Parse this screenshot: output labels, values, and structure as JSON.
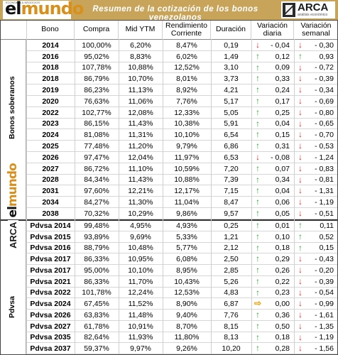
{
  "banner": {
    "title": "Resumen de la cotización de los bonos venezolanos",
    "logo_left": {
      "el": "el",
      "mundo": "mundo",
      "sub": "ECONOMÍA & NEGOCIOS"
    },
    "logo_right": {
      "word": "ARCA",
      "tag": "análisis económico"
    }
  },
  "headers": {
    "bono": "Bono",
    "compra": "Compra",
    "ytm": "Mid YTM",
    "rend": "Rendimiento Corriente",
    "dur": "Duración",
    "vd": "Variación diaria",
    "vs": "Variación semanal"
  },
  "groups": {
    "soberanos": "Bonos soberanos",
    "pdvsa": "Pdvsa"
  },
  "side_logo": {
    "arca": "ARCA",
    "el": "el",
    "mundo": "mundo"
  },
  "colors": {
    "up": "#2e9e3a",
    "down": "#d42a2a",
    "flat": "#f0a400",
    "banner": "#c8a45a"
  },
  "rows": [
    {
      "bono": "2014",
      "compra": "100,00%",
      "ytm": "6,20%",
      "rend": "8,47%",
      "dur": "0,19",
      "vd": "- 0,04",
      "vd_dir": "down",
      "vs": "- 0,30",
      "vs_dir": "down"
    },
    {
      "bono": "2016",
      "compra": "95,02%",
      "ytm": "8,83%",
      "rend": "6,02%",
      "dur": "1,49",
      "vd": "0,12",
      "vd_dir": "up",
      "vs": "0,93",
      "vs_dir": "up"
    },
    {
      "bono": "2018",
      "compra": "107,78%",
      "ytm": "10,88%",
      "rend": "12,52%",
      "dur": "3,10",
      "vd": "0,09",
      "vd_dir": "up",
      "vs": "- 0,72",
      "vs_dir": "down"
    },
    {
      "bono": "2018",
      "compra": "86,79%",
      "ytm": "10,70%",
      "rend": "8,01%",
      "dur": "3,73",
      "vd": "0,33",
      "vd_dir": "up",
      "vs": "- 0,39",
      "vs_dir": "down"
    },
    {
      "bono": "2019",
      "compra": "86,23%",
      "ytm": "11,13%",
      "rend": "8,92%",
      "dur": "4,21",
      "vd": "0,24",
      "vd_dir": "up",
      "vs": "- 0,34",
      "vs_dir": "down"
    },
    {
      "bono": "2020",
      "compra": "76,63%",
      "ytm": "11,06%",
      "rend": "7,76%",
      "dur": "5,17",
      "vd": "0,17",
      "vd_dir": "up",
      "vs": "- 0,69",
      "vs_dir": "down"
    },
    {
      "bono": "2022",
      "compra": "102,77%",
      "ytm": "12,08%",
      "rend": "12,33%",
      "dur": "5,05",
      "vd": "0,25",
      "vd_dir": "up",
      "vs": "- 0,80",
      "vs_dir": "down"
    },
    {
      "bono": "2023",
      "compra": "86,15%",
      "ytm": "11,43%",
      "rend": "10,38%",
      "dur": "5,91",
      "vd": "0,04",
      "vd_dir": "up",
      "vs": "- 0,65",
      "vs_dir": "down"
    },
    {
      "bono": "2024",
      "compra": "81,08%",
      "ytm": "11,31%",
      "rend": "10,10%",
      "dur": "6,54",
      "vd": "0,15",
      "vd_dir": "up",
      "vs": "- 0,70",
      "vs_dir": "down"
    },
    {
      "bono": "2025",
      "compra": "77,48%",
      "ytm": "11,20%",
      "rend": "9,79%",
      "dur": "6,86",
      "vd": "0,31",
      "vd_dir": "up",
      "vs": "- 0,53",
      "vs_dir": "down"
    },
    {
      "bono": "2026",
      "compra": "97,47%",
      "ytm": "12,04%",
      "rend": "11,97%",
      "dur": "6,53",
      "vd": "- 0,08",
      "vd_dir": "down",
      "vs": "- 1,24",
      "vs_dir": "down"
    },
    {
      "bono": "2027",
      "compra": "86,72%",
      "ytm": "11,10%",
      "rend": "10,59%",
      "dur": "7,20",
      "vd": "0,07",
      "vd_dir": "up",
      "vs": "- 0,83",
      "vs_dir": "down"
    },
    {
      "bono": "2028",
      "compra": "84,34%",
      "ytm": "11,43%",
      "rend": "10,88%",
      "dur": "7,39",
      "vd": "0,34",
      "vd_dir": "up",
      "vs": "- 0,81",
      "vs_dir": "down"
    },
    {
      "bono": "2031",
      "compra": "97,60%",
      "ytm": "12,21%",
      "rend": "12,17%",
      "dur": "7,15",
      "vd": "0,04",
      "vd_dir": "up",
      "vs": "- 1,31",
      "vs_dir": "down"
    },
    {
      "bono": "2034",
      "compra": "84,27%",
      "ytm": "11,30%",
      "rend": "11,04%",
      "dur": "8,47",
      "vd": "0,06",
      "vd_dir": "up",
      "vs": "- 1,19",
      "vs_dir": "down"
    },
    {
      "bono": "2038",
      "compra": "70,32%",
      "ytm": "10,29%",
      "rend": "9,86%",
      "dur": "9,57",
      "vd": "0,05",
      "vd_dir": "up",
      "vs": "- 0,51",
      "vs_dir": "down"
    },
    {
      "bono": "Pdvsa 2014",
      "compra": "99,48%",
      "ytm": "4,95%",
      "rend": "4,93%",
      "dur": "0,25",
      "vd": "0,01",
      "vd_dir": "up",
      "vs": "0,11",
      "vs_dir": "up"
    },
    {
      "bono": "Pdvsa 2015",
      "compra": "93,89%",
      "ytm": "9,69%",
      "rend": "5,33%",
      "dur": "1,21",
      "vd": "0,10",
      "vd_dir": "up",
      "vs": "0,52",
      "vs_dir": "up"
    },
    {
      "bono": "Pdvsa 2016",
      "compra": "88,79%",
      "ytm": "10,48%",
      "rend": "5,77%",
      "dur": "2,12",
      "vd": "0,18",
      "vd_dir": "up",
      "vs": "0,15",
      "vs_dir": "up"
    },
    {
      "bono": "Pdvsa 2017",
      "compra": "86,33%",
      "ytm": "10,95%",
      "rend": "6,08%",
      "dur": "2,50",
      "vd": "0,29",
      "vd_dir": "up",
      "vs": "- 0,43",
      "vs_dir": "down"
    },
    {
      "bono": "Pdvsa 2017",
      "compra": "95,00%",
      "ytm": "10,10%",
      "rend": "8,95%",
      "dur": "2,85",
      "vd": "0,26",
      "vd_dir": "up",
      "vs": "- 0,20",
      "vs_dir": "down"
    },
    {
      "bono": "Pdvsa 2021",
      "compra": "86,33%",
      "ytm": "11,70%",
      "rend": "10,43%",
      "dur": "5,26",
      "vd": "0,22",
      "vd_dir": "up",
      "vs": "- 0,39",
      "vs_dir": "down"
    },
    {
      "bono": "Pdvsa 2022",
      "compra": "101,78%",
      "ytm": "12,24%",
      "rend": "12,53%",
      "dur": "4,83",
      "vd": "0,23",
      "vd_dir": "up",
      "vs": "- 0,54",
      "vs_dir": "down"
    },
    {
      "bono": "Pdvsa 2024",
      "compra": "67,45%",
      "ytm": "11,52%",
      "rend": "8,90%",
      "dur": "6,87",
      "vd": "0,00",
      "vd_dir": "flat",
      "vs": "- 0,99",
      "vs_dir": "down"
    },
    {
      "bono": "Pdvsa 2026",
      "compra": "63,83%",
      "ytm": "11,48%",
      "rend": "9,40%",
      "dur": "7,76",
      "vd": "0,36",
      "vd_dir": "up",
      "vs": "- 1,61",
      "vs_dir": "down"
    },
    {
      "bono": "Pdvsa 2027",
      "compra": "61,78%",
      "ytm": "10,91%",
      "rend": "8,70%",
      "dur": "8,15",
      "vd": "0,50",
      "vd_dir": "up",
      "vs": "- 1,35",
      "vs_dir": "down"
    },
    {
      "bono": "Pdvsa 2035",
      "compra": "82,64%",
      "ytm": "11,93%",
      "rend": "11,80%",
      "dur": "8,13",
      "vd": "0,18",
      "vd_dir": "up",
      "vs": "- 1,19",
      "vs_dir": "down"
    },
    {
      "bono": "Pdvsa 2037",
      "compra": "59,37%",
      "ytm": "9,97%",
      "rend": "9,26%",
      "dur": "10,20",
      "vd": "0,28",
      "vd_dir": "up",
      "vs": "- 1,56",
      "vs_dir": "down"
    }
  ]
}
